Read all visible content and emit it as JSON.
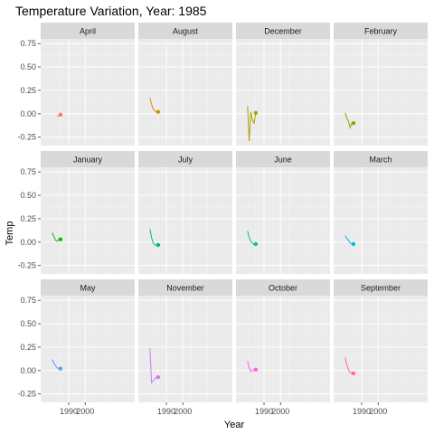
{
  "chart_data": {
    "type": "line",
    "title": "Temperature Variation, Year: 1985",
    "xlabel": "Year",
    "ylabel": "Temp",
    "facet_order": [
      "April",
      "August",
      "December",
      "February",
      "January",
      "July",
      "June",
      "March",
      "May",
      "November",
      "October",
      "September"
    ],
    "xlim": [
      1973,
      2030
    ],
    "ylim": [
      -0.34,
      0.8
    ],
    "x_ticks": [
      1990,
      2000
    ],
    "y_ticks": [
      -0.25,
      0,
      0.25,
      0.5,
      0.75
    ],
    "y_tick_labels": [
      "-0.25",
      "0.00",
      "0.25",
      "0.50",
      "0.75"
    ],
    "grid": true,
    "legend": "none",
    "highlight_year": 1985,
    "series": [
      {
        "name": "April",
        "color": "#F8766D",
        "x": [
          1983,
          1984,
          1985
        ],
        "values": [
          -0.03,
          -0.02,
          -0.01
        ]
      },
      {
        "name": "August",
        "color": "#CD9600",
        "x": [
          1980,
          1981,
          1982,
          1983,
          1984,
          1985
        ],
        "values": [
          0.17,
          0.1,
          0.05,
          0.03,
          0.02,
          0.02
        ]
      },
      {
        "name": "December",
        "color": "#ABA300",
        "x": [
          1980,
          1981,
          1982,
          1983,
          1984,
          1985
        ],
        "values": [
          0.08,
          -0.29,
          0.02,
          -0.07,
          -0.1,
          0.01
        ]
      },
      {
        "name": "February",
        "color": "#7CAE00",
        "x": [
          1980,
          1981,
          1982,
          1983,
          1984,
          1985
        ],
        "values": [
          0.01,
          -0.05,
          -0.08,
          -0.15,
          -0.1,
          -0.1
        ]
      },
      {
        "name": "January",
        "color": "#0CB702",
        "x": [
          1980,
          1981,
          1982,
          1983,
          1984,
          1985
        ],
        "values": [
          0.1,
          0.06,
          0.02,
          0.01,
          0.03,
          0.03
        ]
      },
      {
        "name": "July",
        "color": "#00BE67",
        "x": [
          1980,
          1981,
          1982,
          1983,
          1984,
          1985
        ],
        "values": [
          0.14,
          0.05,
          -0.01,
          -0.03,
          -0.03,
          -0.03
        ]
      },
      {
        "name": "June",
        "color": "#00C19A",
        "x": [
          1980,
          1981,
          1982,
          1983,
          1984,
          1985
        ],
        "values": [
          0.12,
          0.05,
          0.01,
          -0.01,
          -0.03,
          -0.02
        ]
      },
      {
        "name": "March",
        "color": "#00B8E7",
        "x": [
          1980,
          1981,
          1982,
          1983,
          1984,
          1985
        ],
        "values": [
          0.07,
          0.04,
          0.02,
          -0.01,
          -0.02,
          -0.02
        ]
      },
      {
        "name": "May",
        "color": "#619CFF",
        "x": [
          1980,
          1981,
          1982,
          1983,
          1984,
          1985
        ],
        "values": [
          0.12,
          0.08,
          0.05,
          0.03,
          0.02,
          0.02
        ]
      },
      {
        "name": "November",
        "color": "#C77CFF",
        "x": [
          1980,
          1981,
          1982,
          1983,
          1984,
          1985
        ],
        "values": [
          0.24,
          -0.13,
          -0.11,
          -0.09,
          -0.07,
          -0.07
        ]
      },
      {
        "name": "October",
        "color": "#F564E3",
        "x": [
          1980,
          1981,
          1982,
          1983,
          1984,
          1985
        ],
        "values": [
          0.1,
          0.03,
          -0.01,
          0.0,
          0.01,
          0.01
        ]
      },
      {
        "name": "September",
        "color": "#FF64B0",
        "x": [
          1980,
          1981,
          1982,
          1983,
          1984,
          1985
        ],
        "values": [
          0.14,
          0.06,
          0.01,
          -0.02,
          -0.03,
          -0.03
        ]
      }
    ]
  }
}
